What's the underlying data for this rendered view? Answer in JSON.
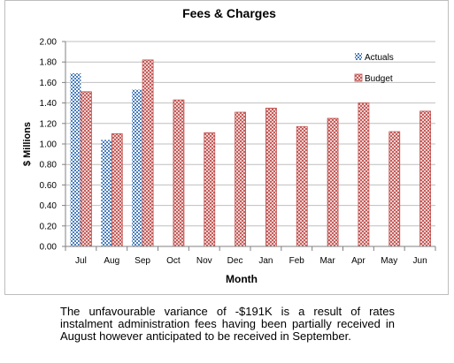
{
  "chart_data": {
    "type": "bar",
    "title": "Fees & Charges",
    "xlabel": "Month",
    "ylabel": "$ Millions",
    "categories": [
      "Jul",
      "Aug",
      "Sep",
      "Oct",
      "Nov",
      "Dec",
      "Jan",
      "Feb",
      "Mar",
      "Apr",
      "May",
      "Jun"
    ],
    "series": [
      {
        "name": "Actuals",
        "values": [
          1.69,
          1.04,
          1.53,
          null,
          null,
          null,
          null,
          null,
          null,
          null,
          null,
          null
        ],
        "color": "#4a7ebb",
        "pattern": "checker"
      },
      {
        "name": "Budget",
        "values": [
          1.51,
          1.1,
          1.82,
          1.43,
          1.11,
          1.31,
          1.35,
          1.17,
          1.25,
          1.4,
          1.12,
          1.32
        ],
        "color": "#c0504d",
        "pattern": "diagonal-cross"
      }
    ],
    "ylim": [
      0,
      2.0
    ],
    "yticks": [
      "0.00",
      "0.20",
      "0.40",
      "0.60",
      "0.80",
      "1.00",
      "1.20",
      "1.40",
      "1.60",
      "1.80",
      "2.00"
    ],
    "grid": true,
    "legend_position": "top-right"
  },
  "caption": "The unfavourable variance of -$191K is a result of rates instalment administration fees having been partially received in August however anticipated to be received in September."
}
